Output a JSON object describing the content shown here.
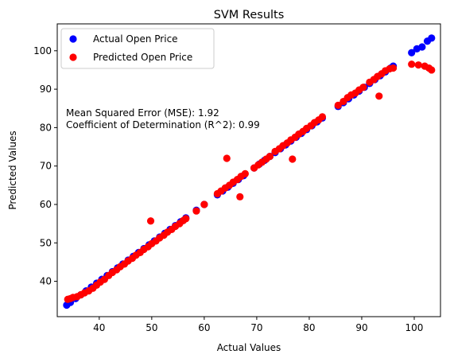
{
  "chart_data": {
    "type": "scatter",
    "title": "SVM Results",
    "xlabel": "Actual Values",
    "ylabel": "Predicted Values",
    "xlim": [
      32,
      105
    ],
    "ylim": [
      30.8,
      107
    ],
    "xticks": [
      40,
      50,
      60,
      70,
      80,
      90,
      100
    ],
    "yticks": [
      40,
      50,
      60,
      70,
      80,
      90,
      100
    ],
    "grid": false,
    "legend_position": "top-left",
    "annotations": [
      "Mean Squared Error (MSE): 1.92",
      "Coefficient of Determination (R^2): 0.99"
    ],
    "series": [
      {
        "name": "Actual Open Price",
        "color": "#0000ff",
        "x": [
          33.8,
          34.5,
          35.5,
          36.5,
          37.5,
          38.5,
          39.5,
          40.5,
          41.5,
          42.5,
          43.5,
          44.5,
          45.5,
          46.5,
          47.5,
          48.5,
          49.5,
          50.5,
          51.5,
          52.5,
          53.5,
          54.5,
          55.5,
          56.5,
          58.5,
          60.0,
          62.5,
          63.5,
          64.5,
          65.5,
          66.5,
          67.5,
          69.5,
          70.5,
          71.5,
          72.5,
          73.5,
          74.5,
          75.5,
          76.5,
          77.5,
          78.5,
          79.5,
          80.5,
          81.5,
          82.5,
          85.5,
          86.5,
          87.5,
          88.5,
          89.5,
          90.5,
          91.5,
          92.5,
          93.5,
          94.5,
          95.5,
          96.0,
          99.5,
          100.5,
          101.5,
          102.5,
          103.3
        ],
        "y": [
          33.8,
          34.5,
          35.5,
          36.5,
          37.5,
          38.5,
          39.5,
          40.5,
          41.5,
          42.5,
          43.5,
          44.5,
          45.5,
          46.5,
          47.5,
          48.5,
          49.5,
          50.5,
          51.5,
          52.5,
          53.5,
          54.5,
          55.5,
          56.5,
          58.5,
          60.0,
          62.5,
          63.5,
          64.5,
          65.5,
          66.5,
          67.5,
          69.5,
          70.5,
          71.5,
          72.5,
          73.5,
          74.5,
          75.5,
          76.5,
          77.5,
          78.5,
          79.5,
          80.5,
          81.5,
          82.5,
          85.5,
          86.5,
          87.5,
          88.5,
          89.5,
          90.5,
          91.5,
          92.5,
          93.5,
          94.5,
          95.5,
          96.0,
          99.5,
          100.5,
          101.0,
          102.5,
          103.3
        ]
      },
      {
        "name": "Predicted Open Price",
        "color": "#ff0000",
        "x": [
          34.0,
          34.5,
          35.0,
          35.8,
          36.5,
          37.2,
          38.0,
          38.8,
          39.5,
          40.2,
          41.0,
          41.8,
          42.5,
          43.3,
          44.0,
          44.8,
          45.5,
          46.3,
          47.0,
          47.8,
          48.5,
          49.3,
          50.0,
          50.8,
          51.5,
          52.3,
          53.0,
          53.8,
          54.5,
          55.3,
          56.0,
          56.5,
          58.5,
          60.0,
          62.5,
          63.2,
          64.0,
          64.8,
          65.5,
          66.3,
          67.0,
          67.8,
          69.5,
          70.3,
          71.0,
          71.8,
          72.5,
          73.5,
          74.3,
          75.0,
          75.8,
          76.5,
          77.3,
          78.0,
          78.8,
          79.5,
          80.3,
          81.0,
          81.8,
          82.5,
          85.5,
          86.5,
          87.3,
          88.0,
          88.8,
          89.5,
          90.3,
          91.5,
          92.3,
          93.0,
          93.8,
          94.5,
          95.3,
          96.0,
          49.8,
          64.3,
          66.8,
          76.8,
          93.3,
          99.5,
          100.8,
          102.0,
          102.8,
          103.3
        ],
        "y": [
          35.3,
          35.5,
          35.8,
          36.0,
          36.5,
          37.0,
          37.5,
          38.2,
          39.0,
          39.8,
          40.5,
          41.5,
          42.3,
          43.0,
          43.8,
          44.5,
          45.3,
          46.0,
          46.8,
          47.5,
          48.3,
          49.0,
          49.8,
          50.5,
          51.3,
          52.0,
          52.8,
          53.5,
          54.3,
          55.0,
          55.8,
          56.3,
          58.3,
          60.0,
          62.8,
          63.5,
          64.3,
          65.0,
          65.8,
          66.5,
          67.3,
          68.0,
          69.5,
          70.3,
          71.0,
          71.8,
          72.5,
          73.8,
          74.5,
          75.3,
          76.0,
          76.8,
          77.5,
          78.3,
          79.0,
          79.8,
          80.5,
          81.3,
          82.0,
          82.8,
          85.8,
          86.8,
          87.8,
          88.5,
          89.0,
          89.8,
          90.5,
          91.8,
          92.5,
          93.3,
          94.0,
          94.8,
          95.3,
          95.5,
          55.7,
          72.0,
          62.0,
          71.8,
          88.2,
          96.5,
          96.3,
          96.0,
          95.5,
          95.0
        ]
      }
    ]
  }
}
